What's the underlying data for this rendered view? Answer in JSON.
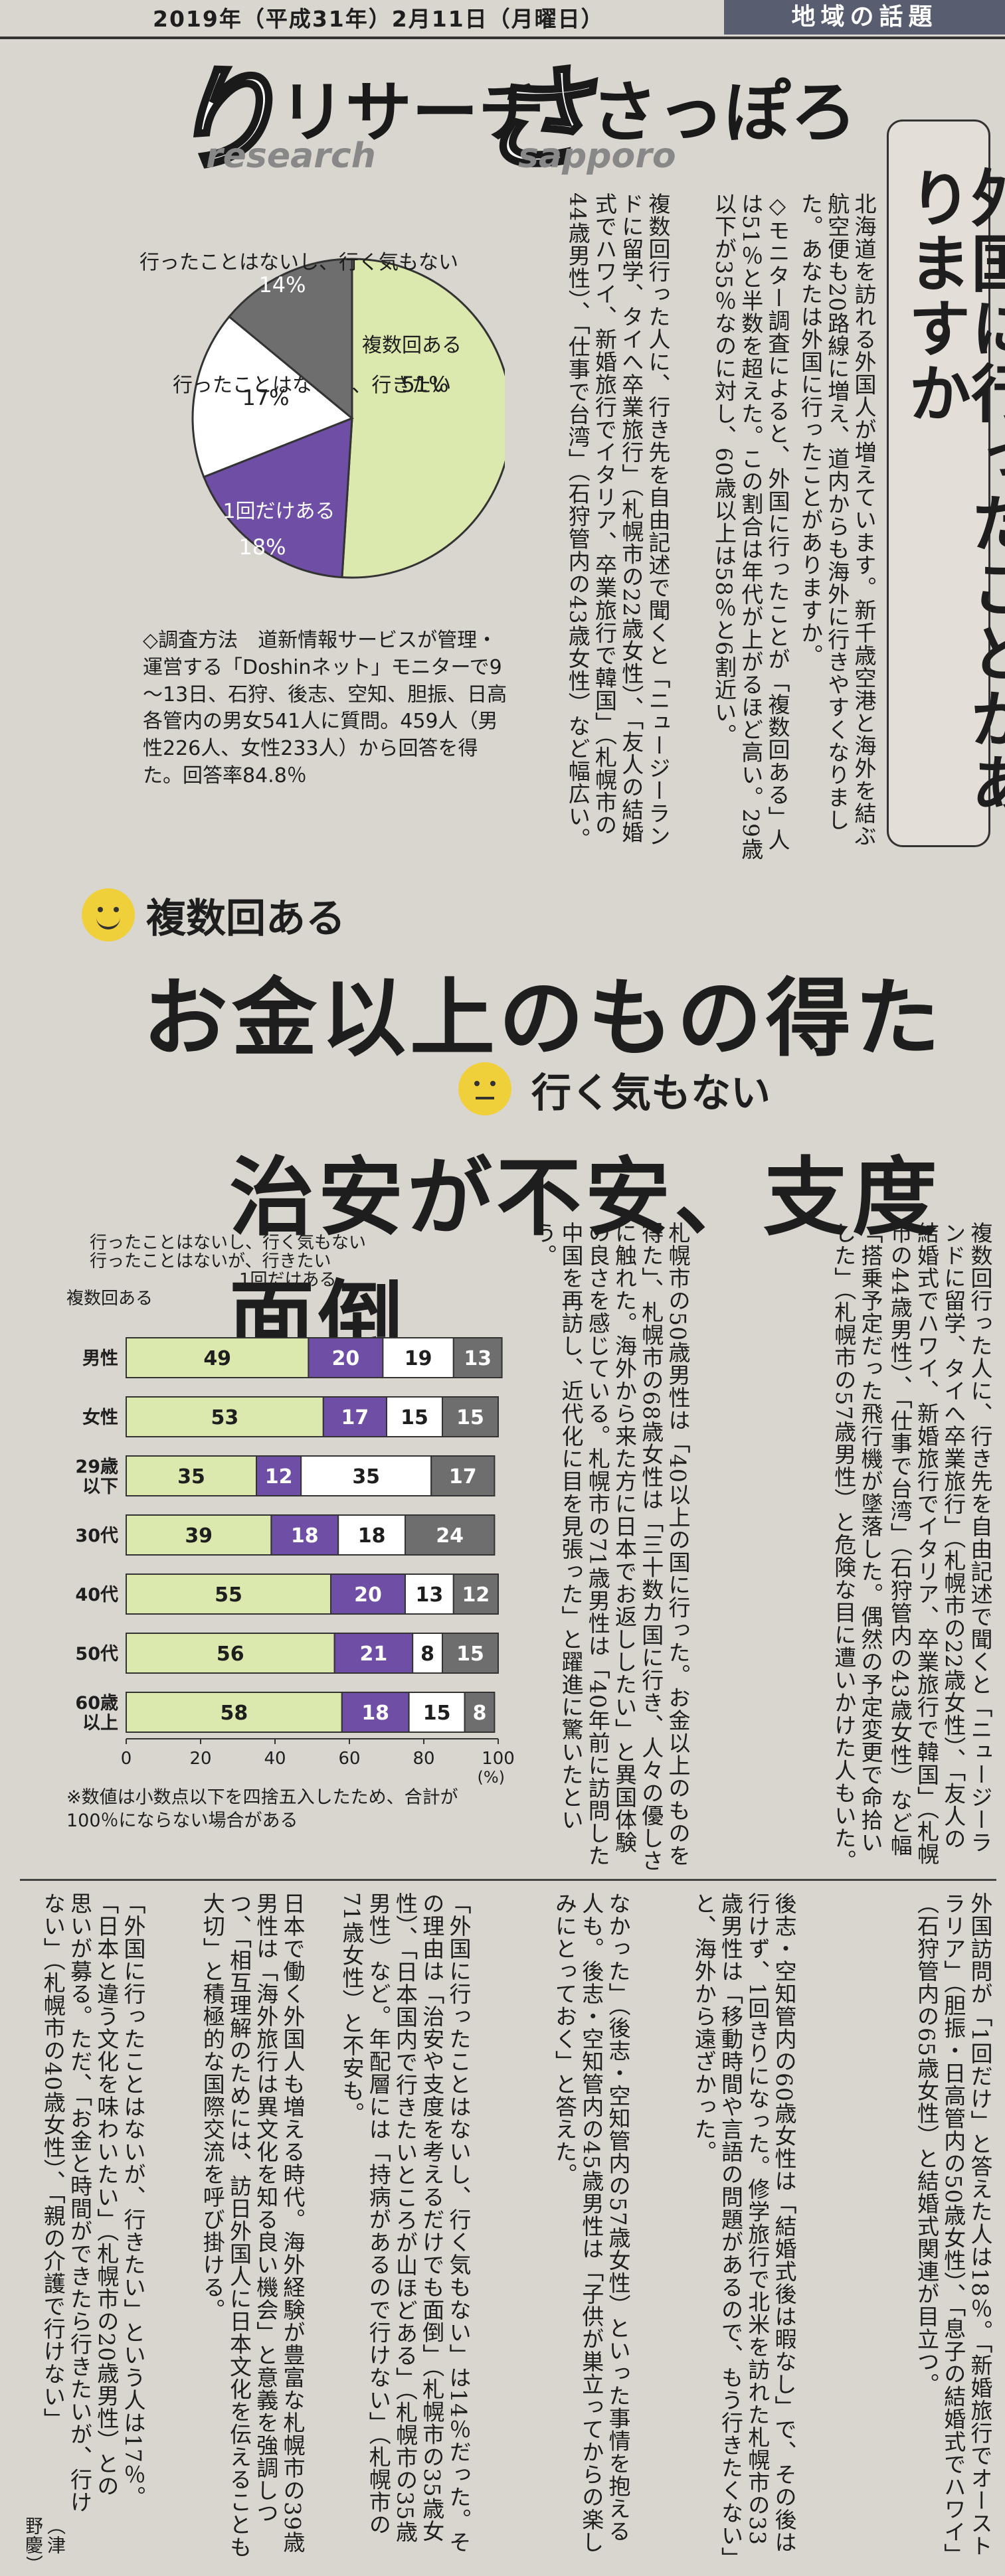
{
  "header": {
    "date": "2019年（平成31年）2月11日（月曜日）",
    "section": "地域の話題"
  },
  "logo": {
    "jp_left": "リサーチ",
    "en_left": "research",
    "jp_right": "さっぽろ",
    "en_right": "sapporo"
  },
  "title": "外国に行ったことがありますか",
  "headline1": {
    "sub": "複数回ある",
    "main": "お金以上のもの得た"
  },
  "headline2": {
    "sub": "行く気もない",
    "main": "治安が不安、支度面倒"
  },
  "method": "◇調査方法　道新情報サービスが管理・運営する「Doshinネット」モニターで9～13日、石狩、後志、空知、胆振、日高各管内の男女541人に質問。459人（男性226人、女性233人）から回答を得た。回答率84.8％",
  "note": "※数値は小数点以下を四捨五入したため、合計が100％にならない場合がある",
  "chart_data": [
    {
      "type": "pie",
      "categories": [
        "複数回ある",
        "1回だけある",
        "行ったことはないが、行きたい",
        "行ったことはないし、行く気もない"
      ],
      "values": [
        51,
        18,
        17,
        14
      ],
      "value_labels": [
        "51%",
        "18%",
        "17%",
        "14%"
      ],
      "colors": [
        "#dbe8ae",
        "#6f4fa6",
        "#ffffff",
        "#6e6e6e"
      ]
    },
    {
      "type": "bar",
      "stacked": true,
      "orientation": "horizontal",
      "categories": [
        "男性",
        "女性",
        "29歳以下",
        "30代",
        "40代",
        "50代",
        "60歳以上"
      ],
      "category_lines": [
        [
          "男性"
        ],
        [
          "女性"
        ],
        [
          "29歳",
          "以下"
        ],
        [
          "30代"
        ],
        [
          "40代"
        ],
        [
          "50代"
        ],
        [
          "60歳",
          "以上"
        ]
      ],
      "series": [
        {
          "name": "複数回ある",
          "values": [
            49,
            53,
            35,
            39,
            55,
            56,
            58
          ],
          "color": "#dbe8ae"
        },
        {
          "name": "1回だけある",
          "values": [
            20,
            17,
            12,
            18,
            20,
            21,
            18
          ],
          "color": "#6f4fa6"
        },
        {
          "name": "行ったことはないが、行きたい",
          "values": [
            19,
            15,
            35,
            18,
            13,
            8,
            15
          ],
          "color": "#ffffff"
        },
        {
          "name": "行ったことはないし、行く気もない",
          "values": [
            13,
            15,
            17,
            24,
            12,
            15,
            8
          ],
          "color": "#6e6e6e"
        }
      ],
      "xlim": [
        0,
        100
      ],
      "xticks": [
        "0",
        "20",
        "40",
        "60",
        "80",
        "100"
      ],
      "unit": "(%)"
    }
  ],
  "body": {
    "col1": "北海道を訪れる外国人が増えています。新千歳空港と海外を結ぶ航空便も20路線に増え、道内からも海外に行きやすくなりました。あなたは外国に行ったことがありますか。",
    "col2": "◇モニター調査によると、外国に行ったことが「複数回ある」人は51％と半数を超えた。この割合は年代が上がるほど高い。29歳以下が35％なのに対し、60歳以上は58％と6割近い。",
    "col3": "複数回行った人に、行き先を自由記述で聞くと「ニュージーランドに留学、タイへ卒業旅行」（札幌市の22歳女性）、「友人の結婚式でハワイ、新婚旅行でイタリア、卒業旅行で韓国」（札幌市の44歳男性）、「仕事で台湾」（石狩管内の43歳女性）など幅広い。",
    "col4": "「搭乗予定だった飛行機が墜落した。偶然の予定変更で命拾いした」（札幌市の57歳男性）と危険な目に遭いかけた人もいた。",
    "col5": "札幌市の50歳男性は「40以上の国に行った。お金以上のものを得た」、札幌市の68歳女性は「三十数カ国に行き、人々の優しさに触れた。海外から来た方に日本でお返ししたい」と異国体験の良さを感じている。札幌市の71歳男性は「40年前に訪問した中国を再訪し、近代化に目を見張った」と躍進に驚いたという。",
    "col6": "外国訪問が「1回だけ」と答えた人は18％。「新婚旅行でオーストラリア」（胆振・日高管内の50歳女性）、「息子の結婚式でハワイ」（石狩管内の65歳女性）と結婚式関連が目立つ。",
    "col7": "後志・空知管内の60歳女性は「結婚式後は暇なし」で、その後は行けず、1回きりになった。修学旅行で北米を訪れた札幌市の33歳男性は「移動時間や言語の問題があるので、もう行きたくない」と、海外から遠ざかった。",
    "col8": "「外国に行ったことはないが、行きたい」という人は17％。「日本と違う文化を味わいたい」（札幌市の20歳男性）との思いが募る。ただ、「お金と時間ができたら行きたいが、行けない」（札幌市の40歳女性）、「親の介護で行けない」",
    "col9": "なかった」（後志・空知管内の57歳女性）といった事情を抱える人も。後志・空知管内の45歳男性は「子供が巣立ってからの楽しみにとっておく」と答えた。",
    "col10": "「外国に行ったことはないし、行く気もない」は14％だった。その理由は「治安や支度を考えるだけでも面倒」（札幌市の35歳女性）、「日本国内で行きたいところが山ほどある」（札幌市の35歳男性）など。年配層には「持病があるので行けない」（札幌市の71歳女性）と不安も。",
    "col11": "日本で働く外国人も増える時代。海外経験が豊富な札幌市の39歳男性は「海外旅行は異文化を知る良い機会」と意義を強調しつつ、「相互理解のためには、訪日外国人に日本文化を伝えることも大切」と積極的な国際交流を呼び掛ける。",
    "byline": "（津野慶）"
  }
}
